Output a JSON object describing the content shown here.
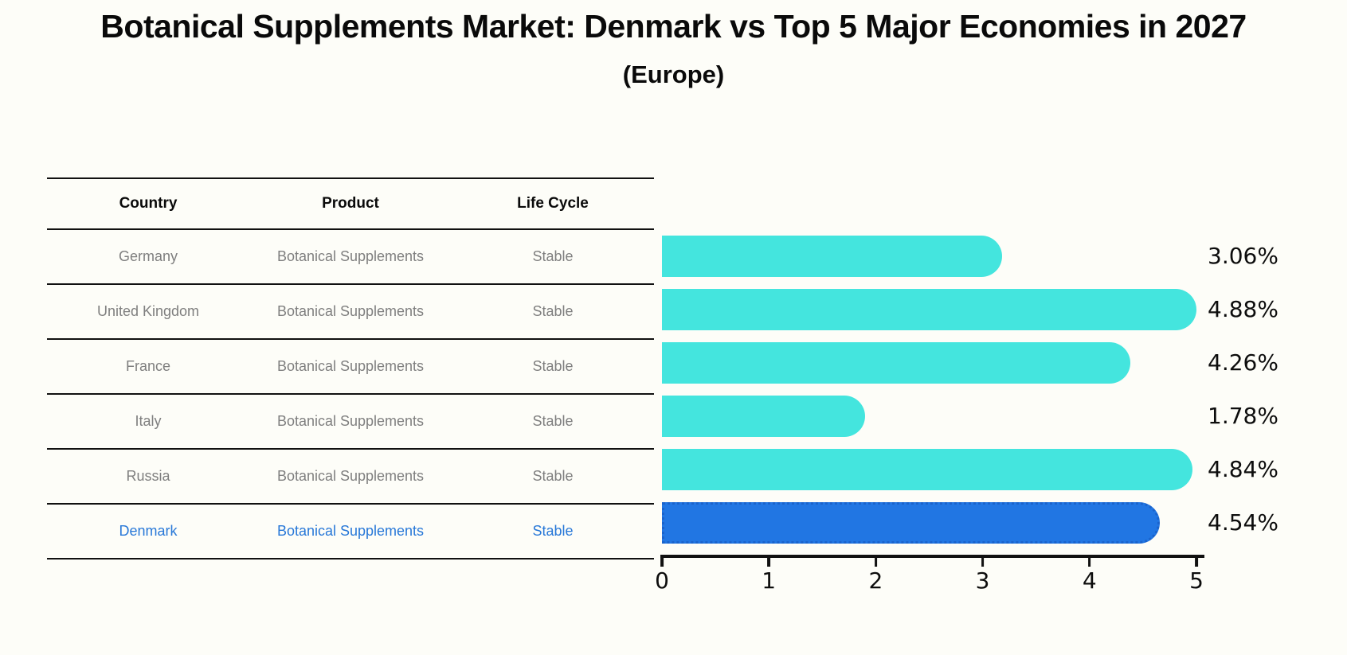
{
  "header": {
    "title": "Botanical Supplements Market: Denmark vs Top 5 Major Economies in 2027",
    "subtitle": "(Europe)"
  },
  "table": {
    "columns": [
      "Country",
      "Product",
      "Life Cycle"
    ],
    "rows": [
      {
        "country": "Germany",
        "product": "Botanical Supplements",
        "life_cycle": "Stable",
        "highlight": false
      },
      {
        "country": "United Kingdom",
        "product": "Botanical Supplements",
        "life_cycle": "Stable",
        "highlight": false
      },
      {
        "country": "France",
        "product": "Botanical Supplements",
        "life_cycle": "Stable",
        "highlight": false
      },
      {
        "country": "Italy",
        "product": "Botanical Supplements",
        "life_cycle": "Stable",
        "highlight": false
      },
      {
        "country": "Russia",
        "product": "Botanical Supplements",
        "life_cycle": "Stable",
        "highlight": false
      },
      {
        "country": "Denmark",
        "product": "Botanical Supplements",
        "life_cycle": "Stable",
        "highlight": true
      }
    ]
  },
  "chart_data": {
    "type": "bar",
    "orientation": "horizontal",
    "title": "Botanical Supplements Market: Denmark vs Top 5 Major Economies in 2027 (Europe)",
    "categories": [
      "Germany",
      "United Kingdom",
      "France",
      "Italy",
      "Russia",
      "Denmark"
    ],
    "values": [
      3.06,
      4.88,
      4.26,
      1.78,
      4.84,
      4.54
    ],
    "labels": [
      "3.06%",
      "4.88%",
      "4.26%",
      "1.78%",
      "4.84%",
      "4.54%"
    ],
    "xlabel": "",
    "ylabel": "",
    "xlim": [
      0,
      5
    ],
    "x_ticks": [
      "0",
      "1",
      "2",
      "3",
      "4",
      "5"
    ],
    "grid": false,
    "legend": false,
    "highlight_index": 5
  },
  "colors": {
    "bar_color": "#44e5de",
    "highlight_bar_color": "#2176e3",
    "highlight_bar_edge": "#1a63cc",
    "highlight_text": "#2878d8",
    "row_text": "#7f7f7f",
    "axis": "#111111"
  }
}
